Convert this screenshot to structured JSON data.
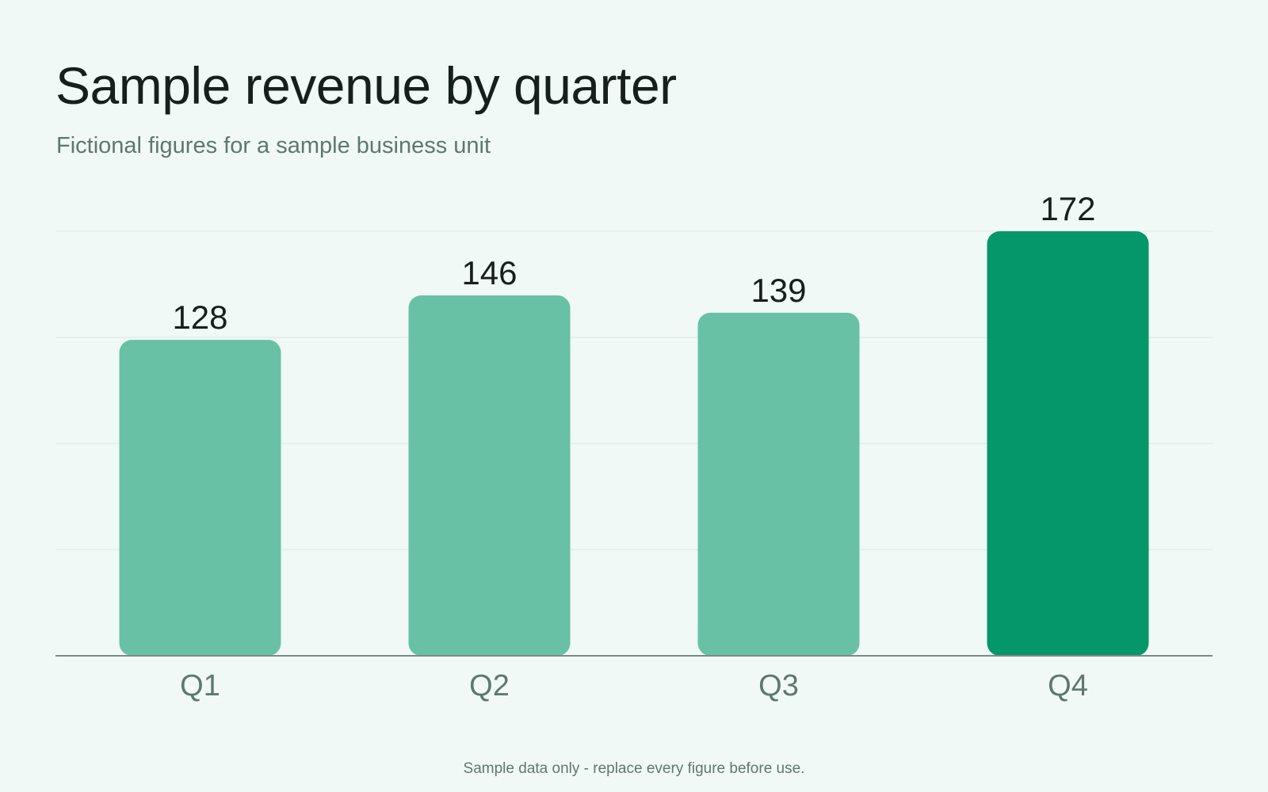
{
  "colors": {
    "background": "#f0f9f6",
    "bar": "#68c1a5",
    "bar_highlight": "#059669",
    "gridline": "#d9e6e1",
    "baseline": "#7d8a86",
    "value_label": "#15201c",
    "tick_label": "#5f7770"
  },
  "chart_data": {
    "type": "bar",
    "title": "Sample revenue by quarter",
    "subtitle": "Fictional figures for a sample business unit",
    "categories": [
      "Q1",
      "Q2",
      "Q3",
      "Q4"
    ],
    "values": [
      128,
      146,
      139,
      172
    ],
    "data_labels": [
      "128",
      "146",
      "139",
      "172"
    ],
    "highlight_index": 3,
    "xlabel": "",
    "ylabel": "",
    "ylim": [
      0,
      172
    ],
    "grid": true,
    "legend": "none",
    "footnote": "Sample data only - replace every figure before use."
  }
}
